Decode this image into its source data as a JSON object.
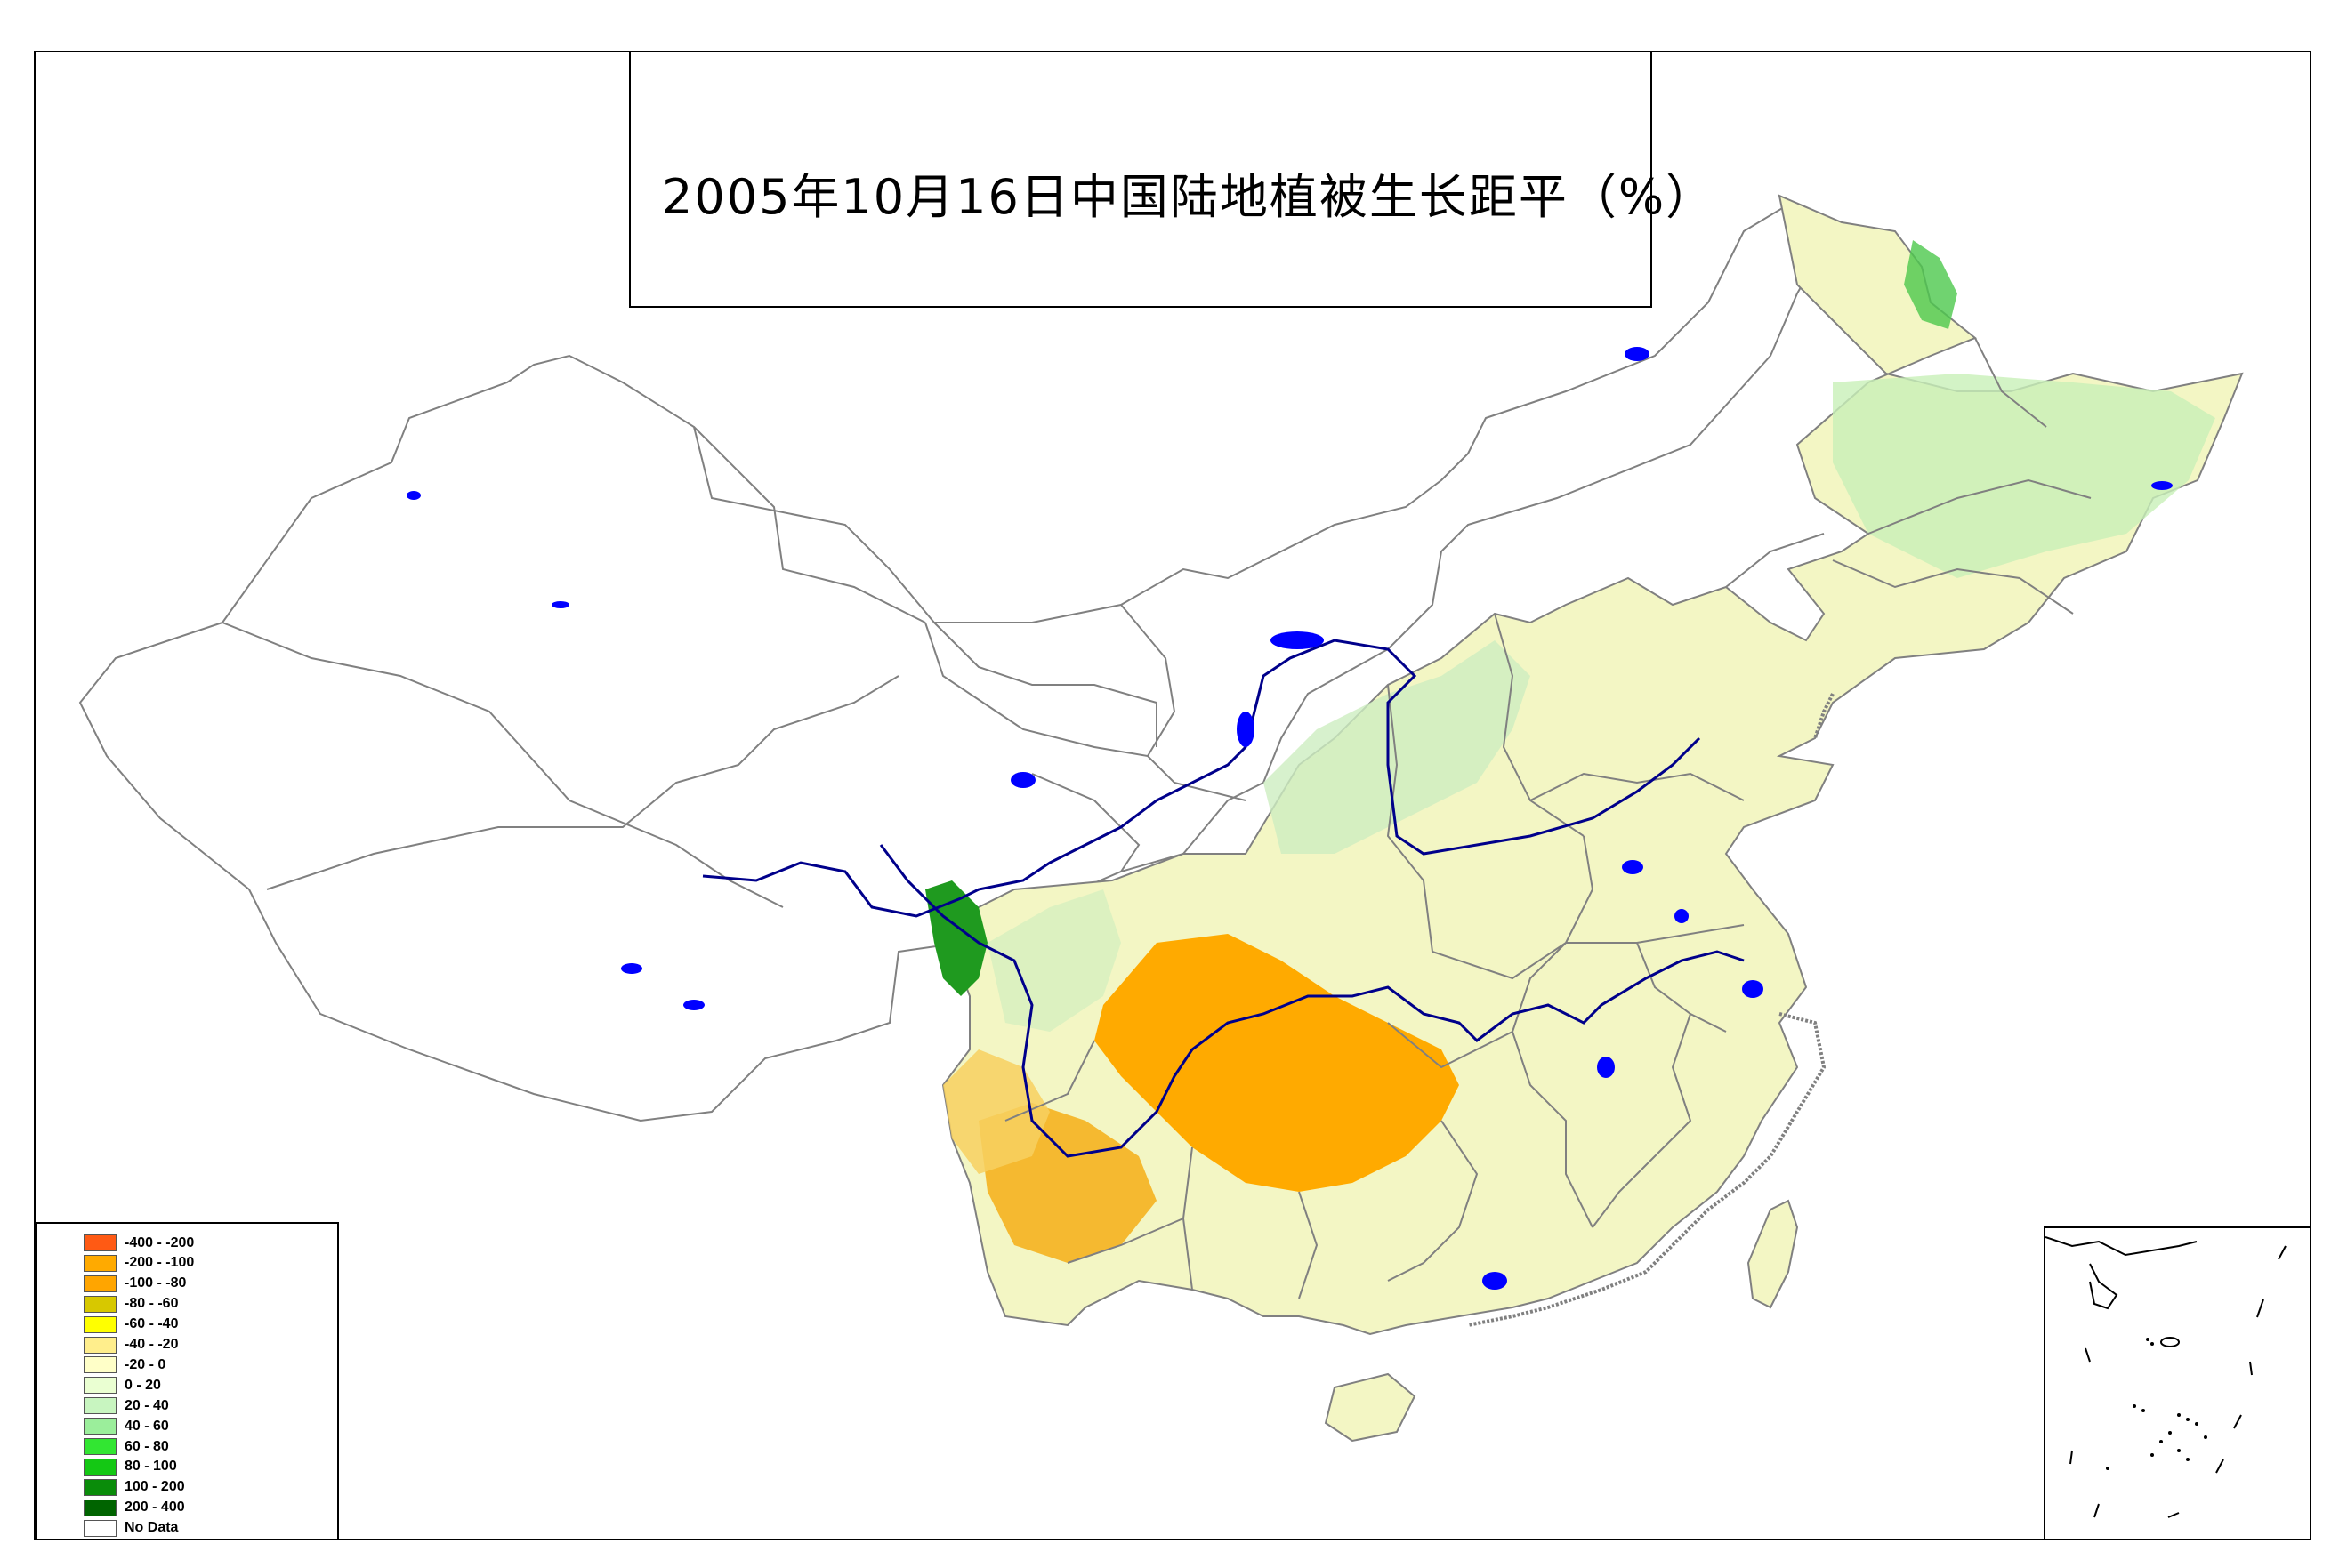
{
  "title": "2005年10月16日中国陆地植被生长距平（%）",
  "legend": {
    "items": [
      {
        "label": "-400 - -200",
        "color": "#ff5a14"
      },
      {
        "label": "-200 - -100",
        "color": "#ffaa00"
      },
      {
        "label": "-100 - -80",
        "color": "#ffa500"
      },
      {
        "label": "-80 - -60",
        "color": "#d7c800"
      },
      {
        "label": "-60 - -40",
        "color": "#ffff00"
      },
      {
        "label": "-40 - -20",
        "color": "#ffee8c"
      },
      {
        "label": "-20 - 0",
        "color": "#ffffc8"
      },
      {
        "label": "0 - 20",
        "color": "#eaffd2"
      },
      {
        "label": "20 - 40",
        "color": "#c8f5c0"
      },
      {
        "label": "40 - 60",
        "color": "#9bee9b"
      },
      {
        "label": "60 - 80",
        "color": "#32e632"
      },
      {
        "label": "80 - 100",
        "color": "#14c814"
      },
      {
        "label": "100 - 200",
        "color": "#0a8c0a"
      },
      {
        "label": "200 - 400",
        "color": "#006400"
      },
      {
        "label": "No Data",
        "color": "#ffffff"
      }
    ]
  },
  "colors": {
    "boundary": "#808080",
    "water": "#0000ff",
    "river": "#00008b"
  }
}
